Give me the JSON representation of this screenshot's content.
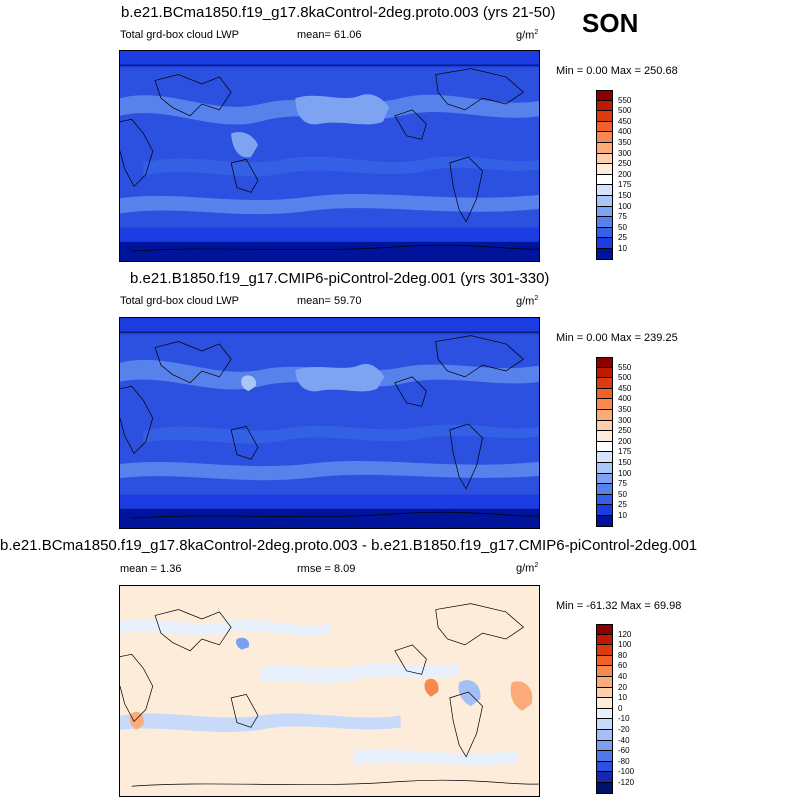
{
  "season": "SON",
  "panels": [
    {
      "title": "b.e21.BCma1850.f19_g17.8kaControl-2deg.proto.003 (yrs 21-50)",
      "variable": "Total grd-box cloud LWP",
      "mean": "mean=  61.06",
      "units_base": "g/m",
      "units_exp": "2",
      "minmax": "Min =   0.00 Max = 250.68",
      "colorbar_labels": [
        "550",
        "500",
        "450",
        "400",
        "350",
        "300",
        "250",
        "200",
        "175",
        "150",
        "100",
        "75",
        "50",
        "25",
        "10"
      ],
      "colorbar_colors": [
        "#8c0000",
        "#be1a00",
        "#dc3a10",
        "#f0622a",
        "#f78850",
        "#fbab79",
        "#fdd0ad",
        "#fdecd9",
        "#ffffff",
        "#d6e4fb",
        "#a9c6f7",
        "#7ea4f1",
        "#5782ec",
        "#3460e6",
        "#1a3ce0",
        "#00139b"
      ]
    },
    {
      "title": "b.e21.B1850.f19_g17.CMIP6-piControl-2deg.001 (yrs 301-330)",
      "variable": "Total grd-box cloud LWP",
      "mean": "mean=  59.70",
      "units_base": "g/m",
      "units_exp": "2",
      "minmax": "Min =   0.00 Max = 239.25",
      "colorbar_labels": [
        "550",
        "500",
        "450",
        "400",
        "350",
        "300",
        "250",
        "200",
        "175",
        "150",
        "100",
        "75",
        "50",
        "25",
        "10"
      ],
      "colorbar_colors": [
        "#8c0000",
        "#be1a00",
        "#dc3a10",
        "#f0622a",
        "#f78850",
        "#fbab79",
        "#fdd0ad",
        "#fdecd9",
        "#ffffff",
        "#d6e4fb",
        "#a9c6f7",
        "#7ea4f1",
        "#5782ec",
        "#3460e6",
        "#1a3ce0",
        "#00139b"
      ]
    },
    {
      "title": "b.e21.BCma1850.f19_g17.8kaControl-2deg.proto.003 - b.e21.B1850.f19_g17.CMIP6-piControl-2deg.001",
      "mean": "mean =   1.36",
      "rmse": "rmse =   8.09",
      "units_base": "g/m",
      "units_exp": "2",
      "minmax": "Min = -61.32 Max =  69.98",
      "colorbar_labels": [
        "120",
        "100",
        "80",
        "60",
        "40",
        "20",
        "10",
        "0",
        "-10",
        "-20",
        "-40",
        "-60",
        "-80",
        "-100",
        "-120"
      ],
      "colorbar_colors": [
        "#8c0000",
        "#be1a00",
        "#dc3a10",
        "#f0622a",
        "#f78850",
        "#fbab79",
        "#fdd0ad",
        "#fdecd9",
        "#e8f0fc",
        "#c8dafa",
        "#a3bff5",
        "#7aa0ef",
        "#5078e8",
        "#2c50df",
        "#1428b0",
        "#00136b"
      ]
    }
  ]
}
